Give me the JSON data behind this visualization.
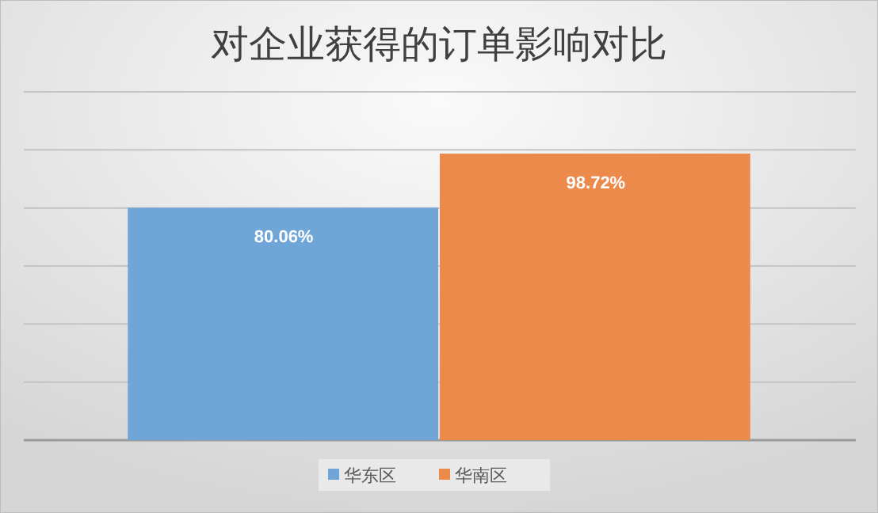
{
  "chart_data": {
    "type": "bar",
    "title": "对企业获得的订单影响对比",
    "categories": [
      null
    ],
    "series": [
      {
        "name": "华东区",
        "color": "#6fa5d7",
        "values": [
          80.06
        ],
        "value_labels": [
          "80.06%"
        ]
      },
      {
        "name": "华南区",
        "color": "#eb8a4b",
        "values": [
          98.72
        ],
        "value_labels": [
          "98.72%"
        ]
      }
    ],
    "ylim": [
      0,
      120
    ],
    "yticks": [
      {
        "value": 0,
        "label": null
      },
      {
        "value": 20,
        "label": null
      },
      {
        "value": 40,
        "label": null
      },
      {
        "value": 60,
        "label": null
      },
      {
        "value": 80,
        "label": null
      },
      {
        "value": 100,
        "label": null
      },
      {
        "value": 120,
        "label": null
      }
    ],
    "grid": "y",
    "legend": "bottom"
  }
}
